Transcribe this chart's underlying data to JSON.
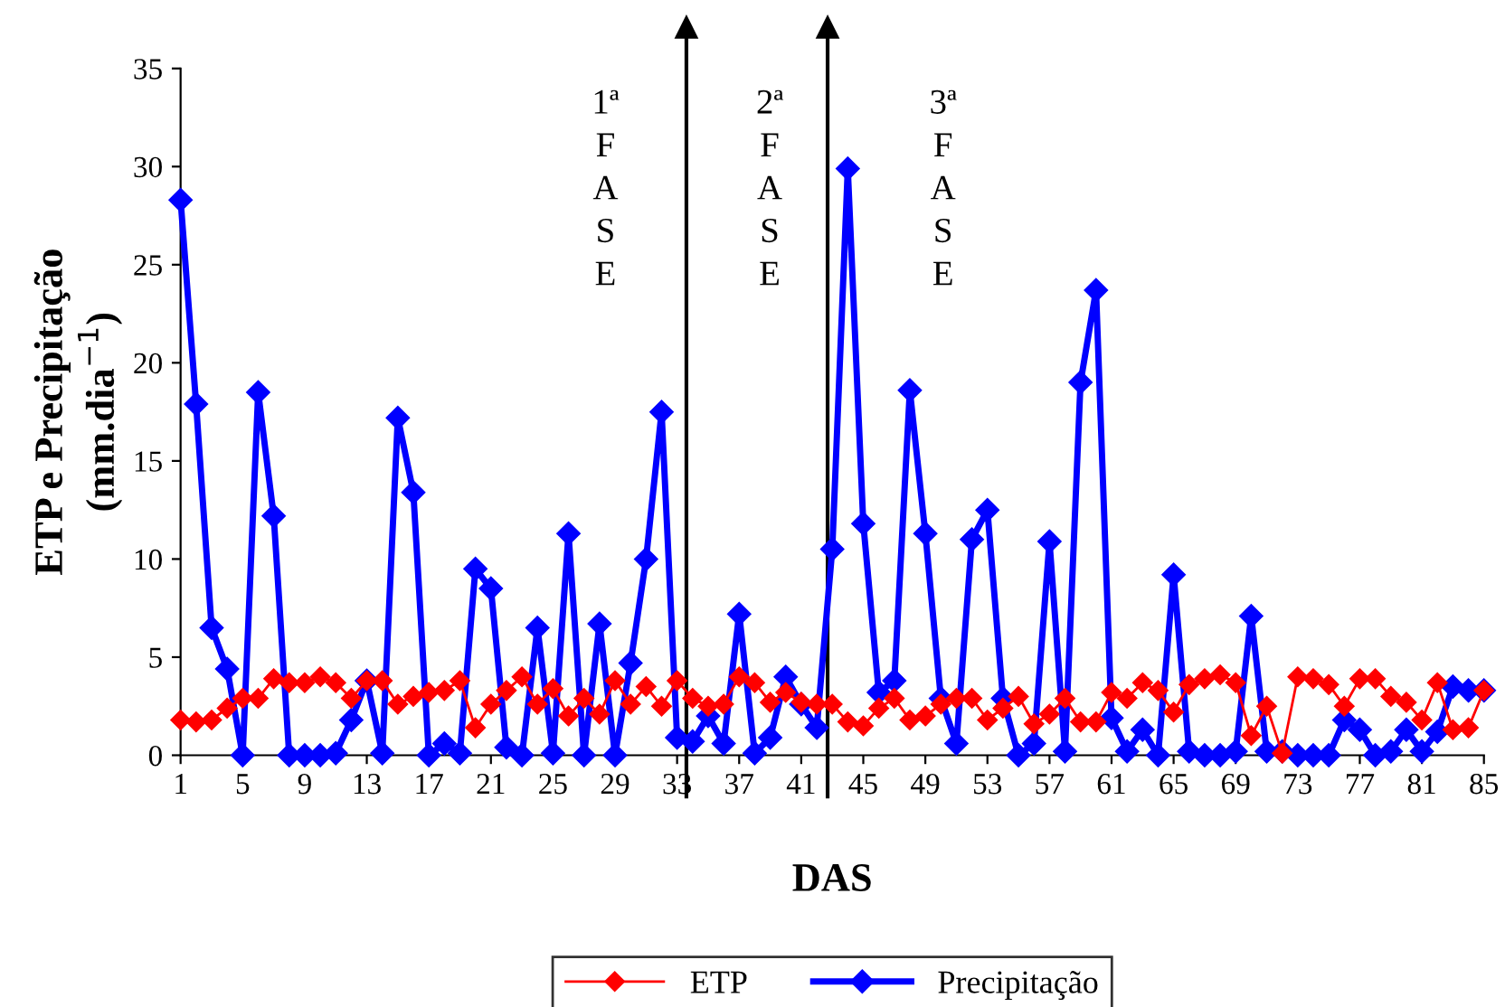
{
  "chart_data": {
    "type": "line",
    "xlabel": "DAS",
    "ylabel": "ETP e Precipitação\n(mm.dia$^{−1}$)",
    "x": [
      1,
      2,
      3,
      4,
      5,
      6,
      7,
      8,
      9,
      10,
      11,
      12,
      13,
      14,
      15,
      16,
      17,
      18,
      19,
      20,
      21,
      22,
      23,
      24,
      25,
      26,
      27,
      28,
      29,
      30,
      31,
      32,
      33,
      34,
      35,
      36,
      37,
      38,
      39,
      40,
      41,
      42,
      43,
      44,
      45,
      46,
      47,
      48,
      49,
      50,
      51,
      52,
      53,
      54,
      55,
      56,
      57,
      58,
      59,
      60,
      61,
      62,
      63,
      64,
      65,
      66,
      67,
      68,
      69,
      70,
      71,
      72,
      73,
      74,
      75,
      76,
      77,
      78,
      79,
      80,
      81,
      82,
      83,
      84,
      85
    ],
    "xlim": [
      1,
      85
    ],
    "xticks": [
      1,
      5,
      9,
      13,
      17,
      21,
      25,
      29,
      33,
      37,
      41,
      45,
      49,
      53,
      57,
      61,
      65,
      69,
      73,
      77,
      81,
      85
    ],
    "ylim": [
      0,
      35
    ],
    "yticks": [
      0,
      5,
      10,
      15,
      20,
      25,
      30,
      35
    ],
    "grid": false,
    "legend": "bottom",
    "marker": "diamond",
    "series": [
      {
        "name": "ETP",
        "color": "#ff0000",
        "values": [
          1.8,
          1.7,
          1.8,
          2.4,
          2.9,
          2.9,
          3.9,
          3.7,
          3.7,
          4.0,
          3.7,
          2.9,
          3.8,
          3.8,
          2.6,
          3.0,
          3.2,
          3.3,
          3.8,
          1.4,
          2.6,
          3.3,
          4.0,
          2.6,
          3.4,
          2.0,
          2.9,
          2.1,
          3.8,
          2.6,
          3.5,
          2.5,
          3.8,
          2.9,
          2.5,
          2.6,
          4.0,
          3.7,
          2.7,
          3.2,
          2.7,
          2.6,
          2.6,
          1.7,
          1.5,
          2.4,
          2.9,
          1.8,
          2.0,
          2.6,
          2.9,
          2.9,
          1.8,
          2.4,
          3.0,
          1.6,
          2.1,
          2.9,
          1.7,
          1.7,
          3.2,
          2.9,
          3.7,
          3.3,
          2.2,
          3.6,
          3.9,
          4.1,
          3.7,
          1.0,
          2.5,
          0.1,
          4.0,
          3.9,
          3.6,
          2.5,
          3.9,
          3.9,
          3.0,
          2.7,
          1.8,
          3.7,
          1.3,
          1.4,
          3.3
        ]
      },
      {
        "name": "Precipitação",
        "color": "#0000ff",
        "values": [
          28.3,
          17.9,
          6.5,
          4.4,
          0,
          18.5,
          12.2,
          0,
          0,
          0,
          0.1,
          1.8,
          3.8,
          0.1,
          17.2,
          13.4,
          0,
          0.6,
          0.1,
          9.5,
          8.5,
          0.4,
          0,
          6.5,
          0.1,
          11.3,
          0,
          6.7,
          0,
          4.7,
          10.0,
          17.5,
          0.9,
          0.7,
          2.0,
          0.6,
          7.2,
          0.1,
          0.9,
          4.0,
          2.6,
          1.4,
          10.5,
          29.9,
          11.8,
          3.2,
          3.8,
          18.6,
          11.3,
          2.9,
          0.6,
          11.0,
          12.5,
          2.9,
          0,
          0.6,
          10.9,
          0.2,
          19.0,
          23.7,
          1.9,
          0.2,
          1.3,
          0,
          9.2,
          0.2,
          0,
          0,
          0.2,
          7.1,
          0.2,
          0.2,
          0,
          0,
          0,
          1.8,
          1.3,
          0,
          0.2,
          1.3,
          0.2,
          1.2,
          3.5,
          3.3,
          3.3
        ]
      }
    ],
    "ref_lines": [
      {
        "axis": "x",
        "value": 33.6,
        "color": "#000000",
        "line_style": "solid"
      },
      {
        "axis": "x",
        "value": 42.7,
        "color": "#000000",
        "line_style": "solid"
      }
    ],
    "annotations": [
      "1ª\nF\nA\nS\nE",
      "2ª\nF\nA\nS\nE",
      "3ª\nF\nA\nS\nE"
    ]
  }
}
